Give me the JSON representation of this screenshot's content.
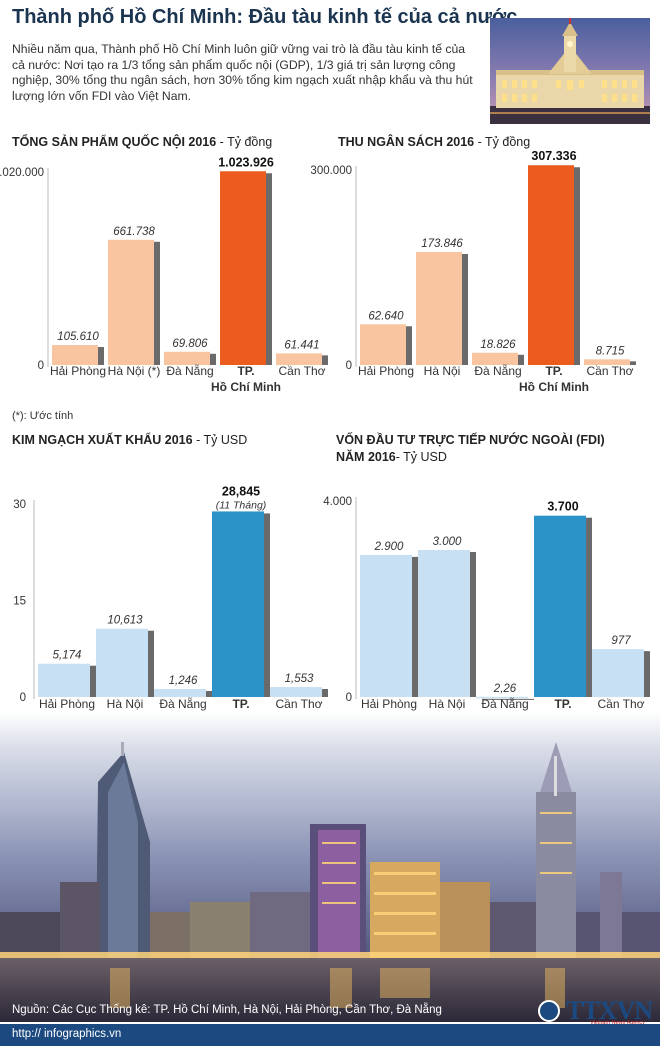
{
  "title": "Thành phố Hồ Chí Minh: Đầu tàu kinh tế của cả nước",
  "intro": "Nhiều năm qua, Thành phố Hồ Chí Minh luôn giữ vững vai trò là đầu tàu kinh tế của cả nước: Nơi tạo ra 1/3 tổng sản phẩm quốc nội (GDP), 1/3 giá trị sản lượng công nghiệp, 30% tổng thu ngân sách, hơn 30% tổng kim ngạch xuất nhập khẩu và thu hút lượng lớn vốn FDI vào Việt Nam.",
  "note": "(*): Ước tính",
  "source": "Nguồn: Các Cục Thống kê: TP. Hồ Chí Minh, Hà Nội, Hải Phòng, Cần Thơ, Đà Nẵng",
  "website": "http:// infographics.vn",
  "logo": {
    "text": "TTXVN",
    "sub": "Vietnam News Agency"
  },
  "colors": {
    "peach": "#f8c5a0",
    "orange": "#ec5c1e",
    "lightblue": "#c8e0f4",
    "blue": "#2b93c8",
    "bar_shadow": "#6a6a6a"
  },
  "chart_data": [
    {
      "id": "gdp",
      "type": "bar",
      "title": "TỔNG SẢN PHẨM QUỐC NỘI 2016",
      "unit": "Tỷ đồng",
      "categories": [
        "Hải Phòng",
        "Hà Nội (*)",
        "Đà Nẵng",
        "TP.",
        "Cần Thơ"
      ],
      "category_line2": [
        "",
        "",
        "",
        "Hồ Chí Minh",
        ""
      ],
      "values": [
        105610,
        661738,
        69806,
        1023926,
        61441
      ],
      "value_labels": [
        "105.610",
        "661.738",
        "69.806",
        "1.023.926",
        "61.441"
      ],
      "highlight_index": 3,
      "ylim": [
        0,
        1020000
      ],
      "yticks": [
        0,
        1020000
      ],
      "ytick_labels": [
        "0",
        "1.020.000"
      ],
      "bar_color": "#f8c5a0",
      "highlight_color": "#ec5c1e"
    },
    {
      "id": "budget",
      "type": "bar",
      "title": "THU NGÂN SÁCH 2016",
      "unit": "Tỷ đồng",
      "categories": [
        "Hải Phòng",
        "Hà Nội",
        "Đà Nẵng",
        "TP.",
        "Cần Thơ"
      ],
      "category_line2": [
        "",
        "",
        "",
        "Hồ Chí Minh",
        ""
      ],
      "values": [
        62640,
        173846,
        18826,
        307336,
        8715
      ],
      "value_labels": [
        "62.640",
        "173.846",
        "18.826",
        "307.336",
        "8.715"
      ],
      "highlight_index": 3,
      "ylim": [
        0,
        300000
      ],
      "yticks": [
        0,
        300000
      ],
      "ytick_labels": [
        "0",
        "300.000"
      ],
      "bar_color": "#f8c5a0",
      "highlight_color": "#ec5c1e"
    },
    {
      "id": "export",
      "type": "bar",
      "title": "KIM NGẠCH XUẤT KHẨU 2016",
      "unit": "Tỷ USD",
      "categories": [
        "Hải Phòng",
        "Hà Nội",
        "Đà Nẵng",
        "TP.",
        "Cần Thơ"
      ],
      "category_line2": [
        "",
        "",
        "",
        "Hồ Chí Minh",
        ""
      ],
      "values": [
        5.174,
        10.613,
        1.246,
        28.845,
        1.553
      ],
      "value_labels": [
        "5,174",
        "10,613",
        "1,246",
        "28,845",
        "1,553"
      ],
      "highlight_index": 3,
      "highlight_annotation": "(11 Tháng)",
      "ylim": [
        0,
        30
      ],
      "yticks": [
        0,
        15,
        30
      ],
      "ytick_labels": [
        "0",
        "15",
        "30"
      ],
      "bar_color": "#c8e0f4",
      "highlight_color": "#2b93c8"
    },
    {
      "id": "fdi",
      "type": "bar",
      "title": "VỐN ĐẦU TƯ TRỰC TIẾP NƯỚC NGOÀI (FDI)",
      "title_line2": "NĂM 2016",
      "unit": "Tỷ USD",
      "categories": [
        "Hải Phòng",
        "Hà Nội",
        "Đà Nẵng",
        "TP.",
        "Cần Thơ"
      ],
      "category_line2": [
        "",
        "",
        "",
        "Hồ Chí Minh",
        ""
      ],
      "values": [
        2900,
        3000,
        2.26,
        3700,
        977
      ],
      "value_labels": [
        "2.900",
        "3.000",
        "2,26",
        "3.700",
        "977"
      ],
      "highlight_index": 3,
      "ylim": [
        0,
        4000
      ],
      "yticks": [
        0,
        4000
      ],
      "ytick_labels": [
        "0",
        "4.000"
      ],
      "bar_color": "#c8e0f4",
      "highlight_color": "#2b93c8"
    }
  ]
}
